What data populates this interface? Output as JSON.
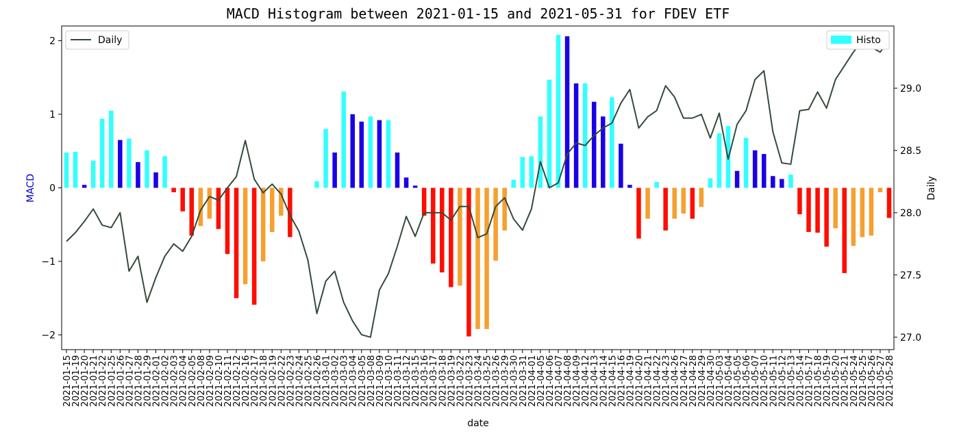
{
  "chart_data": {
    "type": "bar",
    "title": "MACD Histogram between 2021-01-15 and 2021-05-31 for FDEV ETF",
    "xlabel": "date",
    "ylabel_left": "MACD",
    "ylabel_right": "Daily",
    "ylim_left": [
      -2.2,
      2.2
    ],
    "ylim_right": [
      26.9,
      29.5
    ],
    "yticks_left": [
      -2,
      -1,
      0,
      1,
      2
    ],
    "ytick_labels_left": [
      "−2",
      "−1",
      "0",
      "1",
      "2"
    ],
    "yticks_right": [
      27.0,
      27.5,
      28.0,
      28.5,
      29.0
    ],
    "ytick_labels_right": [
      "27.0",
      "27.5",
      "28.0",
      "28.5",
      "29.0"
    ],
    "legend_left": {
      "position": "upper-left",
      "label": "Daily"
    },
    "legend_right": {
      "position": "upper-right",
      "label": "Histo"
    },
    "colors": {
      "rising_positive": "#33ffff",
      "falling_positive": "#1a00e6",
      "falling_negative": "#ff0d00",
      "rising_negative": "#f5a030",
      "line": "#344a3a"
    },
    "x": [
      "2021-01-15",
      "2021-01-19",
      "2021-01-20",
      "2021-01-21",
      "2021-01-22",
      "2021-01-25",
      "2021-01-26",
      "2021-01-27",
      "2021-01-28",
      "2021-01-29",
      "2021-02-01",
      "2021-02-02",
      "2021-02-03",
      "2021-02-04",
      "2021-02-05",
      "2021-02-08",
      "2021-02-09",
      "2021-02-10",
      "2021-02-11",
      "2021-02-12",
      "2021-02-16",
      "2021-02-17",
      "2021-02-18",
      "2021-02-19",
      "2021-02-22",
      "2021-02-23",
      "2021-02-24",
      "2021-02-25",
      "2021-02-26",
      "2021-03-01",
      "2021-03-02",
      "2021-03-03",
      "2021-03-04",
      "2021-03-05",
      "2021-03-08",
      "2021-03-09",
      "2021-03-10",
      "2021-03-11",
      "2021-03-12",
      "2021-03-15",
      "2021-03-16",
      "2021-03-17",
      "2021-03-18",
      "2021-03-19",
      "2021-03-22",
      "2021-03-23",
      "2021-03-24",
      "2021-03-25",
      "2021-03-26",
      "2021-03-29",
      "2021-03-30",
      "2021-03-31",
      "2021-04-01",
      "2021-04-05",
      "2021-04-06",
      "2021-04-07",
      "2021-04-08",
      "2021-04-09",
      "2021-04-12",
      "2021-04-13",
      "2021-04-14",
      "2021-04-15",
      "2021-04-16",
      "2021-04-19",
      "2021-04-20",
      "2021-04-21",
      "2021-04-22",
      "2021-04-23",
      "2021-04-26",
      "2021-04-27",
      "2021-04-28",
      "2021-04-29",
      "2021-04-30",
      "2021-05-03",
      "2021-05-04",
      "2021-05-05",
      "2021-05-06",
      "2021-05-07",
      "2021-05-10",
      "2021-05-11",
      "2021-05-12",
      "2021-05-13",
      "2021-05-14",
      "2021-05-17",
      "2021-05-18",
      "2021-05-19",
      "2021-05-20",
      "2021-05-21",
      "2021-05-24",
      "2021-05-25",
      "2021-05-26",
      "2021-05-27",
      "2021-05-28"
    ],
    "histo": [
      0.48,
      0.49,
      0.04,
      0.37,
      0.94,
      1.05,
      0.65,
      0.67,
      0.35,
      0.51,
      0.21,
      0.43,
      -0.06,
      -0.32,
      -0.65,
      -0.52,
      -0.42,
      -0.56,
      -0.9,
      -1.5,
      -1.31,
      -1.59,
      -1.0,
      -0.6,
      -0.38,
      -0.67,
      0.0,
      0.0,
      0.09,
      0.8,
      0.48,
      1.31,
      1.0,
      0.9,
      0.97,
      0.92,
      0.92,
      0.48,
      0.14,
      0.03,
      -0.38,
      -1.03,
      -1.15,
      -1.35,
      -1.33,
      -2.02,
      -1.92,
      -1.92,
      -0.99,
      -0.58,
      0.11,
      0.42,
      0.43,
      0.97,
      1.47,
      2.08,
      2.06,
      1.42,
      1.42,
      1.17,
      0.97,
      1.23,
      0.6,
      0.04,
      -0.69,
      -0.42,
      0.08,
      -0.58,
      -0.42,
      -0.35,
      -0.42,
      -0.26,
      0.13,
      0.74,
      0.84,
      0.23,
      0.68,
      0.51,
      0.46,
      0.16,
      0.12,
      0.18,
      -0.36,
      -0.6,
      -0.61,
      -0.8,
      -0.55,
      -1.16,
      -0.79,
      -0.67,
      -0.65,
      -0.06,
      -0.41
    ],
    "daily": [
      27.77,
      27.84,
      27.93,
      28.03,
      27.9,
      27.88,
      28.0,
      27.53,
      27.65,
      27.28,
      27.48,
      27.65,
      27.75,
      27.69,
      27.81,
      28.02,
      28.13,
      28.1,
      28.2,
      28.29,
      28.58,
      28.27,
      28.16,
      28.23,
      28.15,
      27.98,
      27.85,
      27.62,
      27.19,
      27.45,
      27.53,
      27.28,
      27.13,
      27.02,
      27.0,
      27.38,
      27.51,
      27.73,
      27.97,
      27.81,
      28.0,
      28.0,
      28.0,
      27.94,
      28.05,
      28.05,
      27.8,
      27.83,
      28.05,
      28.12,
      27.95,
      27.86,
      28.03,
      28.41,
      28.2,
      28.24,
      28.47,
      28.56,
      28.54,
      28.62,
      28.68,
      28.72,
      28.88,
      28.99,
      28.68,
      28.77,
      28.82,
      29.02,
      28.93,
      28.76,
      28.76,
      28.79,
      28.6,
      28.8,
      28.43,
      28.71,
      28.82,
      29.07,
      29.14,
      28.65,
      28.4,
      28.39,
      28.82,
      28.83,
      28.97,
      28.84,
      29.07,
      29.18,
      29.29,
      29.38,
      29.33,
      29.29,
      29.39
    ]
  }
}
